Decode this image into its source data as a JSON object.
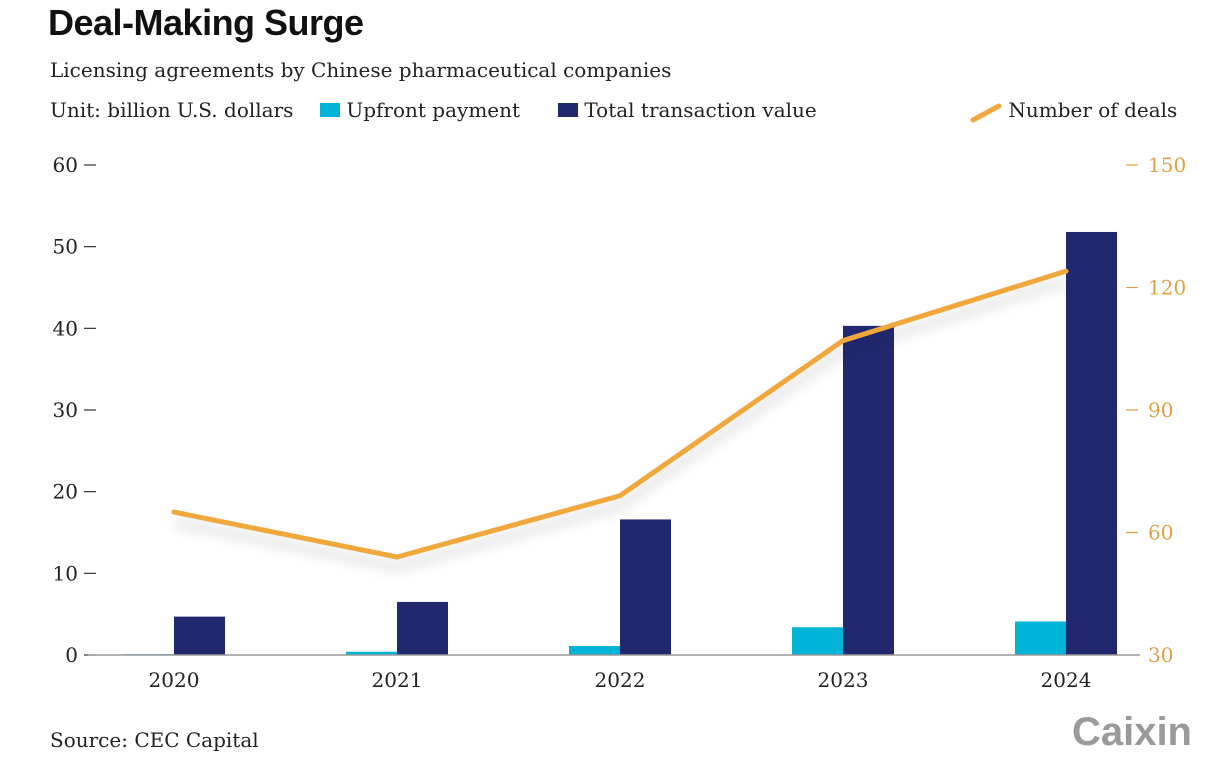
{
  "title": "Deal-Making Surge",
  "subtitle": "Licensing agreements by Chinese pharmaceutical companies",
  "unit": "Unit: billion U.S. dollars",
  "source": "Source: CEC Capital",
  "logo": "Caixin",
  "colors": {
    "upfront": "#00b4d8",
    "total": "#212870",
    "deals": "#f0a83c",
    "right_axis": "#e0a046"
  },
  "chart_data": {
    "type": "bar+line",
    "categories": [
      "2020",
      "2021",
      "2022",
      "2023",
      "2024"
    ],
    "series": [
      {
        "name": "Upfront payment",
        "type": "bar",
        "axis": "left",
        "values": [
          0.1,
          0.4,
          1.1,
          3.4,
          4.1
        ]
      },
      {
        "name": "Total transaction value",
        "type": "bar",
        "axis": "left",
        "values": [
          4.7,
          6.5,
          16.6,
          40.3,
          51.8
        ]
      },
      {
        "name": "Number of deals",
        "type": "line",
        "axis": "right",
        "values": [
          65,
          54,
          69,
          107,
          124
        ]
      }
    ],
    "left_axis": {
      "ylim": [
        0,
        60
      ],
      "ticks": [
        "0",
        "10",
        "20",
        "30",
        "40",
        "50",
        "60"
      ]
    },
    "right_axis": {
      "ylim": [
        30,
        150
      ],
      "ticks": [
        "30",
        "60",
        "90",
        "120",
        "150"
      ]
    },
    "grid": false,
    "legend": "top"
  }
}
